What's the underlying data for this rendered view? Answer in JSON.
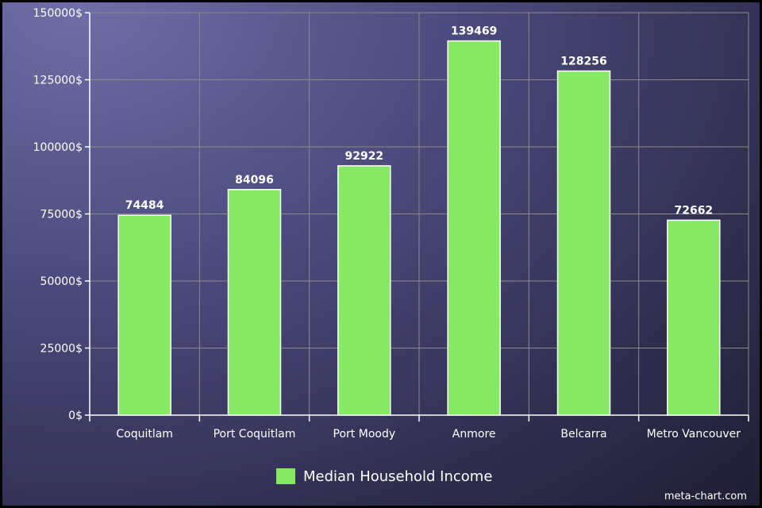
{
  "chart_data": {
    "type": "bar",
    "categories": [
      "Coquitlam",
      "Port Coquitlam",
      "Port Moody",
      "Anmore",
      "Belcarra",
      "Metro Vancouver"
    ],
    "series": [
      {
        "name": "Median Household Income",
        "values": [
          74484,
          84096,
          92922,
          139469,
          128256,
          72662
        ]
      }
    ],
    "data_labels": [
      "74484",
      "84096",
      "92922",
      "139469",
      "128256",
      "72662"
    ],
    "ylim": [
      0,
      150000
    ],
    "y_ticks": [
      0,
      25000,
      50000,
      75000,
      100000,
      125000,
      150000
    ],
    "y_tick_labels": [
      "0$",
      "25000$",
      "50000$",
      "75000$",
      "100000$",
      "125000$",
      "150000$"
    ],
    "grid": true,
    "legend_position": "bottom",
    "bar_color": "#87e866",
    "bar_border_color": "#ffffff",
    "grid_color": "#8a8a8a"
  },
  "legend": {
    "label": "Median Household Income"
  },
  "watermark": "meta-chart.com"
}
